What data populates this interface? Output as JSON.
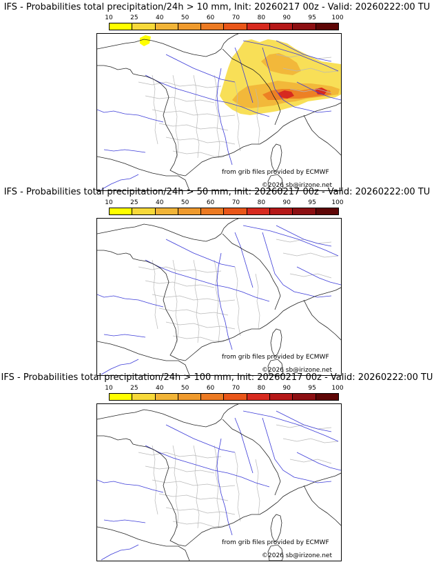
{
  "colorbar": {
    "labels": [
      "10",
      "25",
      "40",
      "50",
      "60",
      "70",
      "80",
      "90",
      "95",
      "100"
    ],
    "colors": [
      "#ffff00",
      "#f7d93a",
      "#f1b437",
      "#ef9a2d",
      "#ec7a22",
      "#e95619",
      "#d72a1f",
      "#b51818",
      "#8c0f12",
      "#5e0606"
    ]
  },
  "panels": [
    {
      "title": "IFS - Probabilities total precipitation/24h > 10 mm, Init: 20260217 00z - Valid: 20260222:00 TU",
      "credit_source": "from grib files provided by ECMWF",
      "credit_copyright": "©2026 sb@irizone.net",
      "has_precip": true
    },
    {
      "title": "IFS - Probabilities total precipitation/24h > 50 mm, Init: 20260217 00z - Valid: 20260222:00 TU",
      "credit_source": "from grib files provided by ECMWF",
      "credit_copyright": "©2026 sb@irizone.net",
      "has_precip": false
    },
    {
      "title": "IFS - Probabilities total precipitation/24h > 100 mm, Init: 20260217 00z - Valid: 20260222:00 TU",
      "credit_source": "from grib files provided by ECMWF",
      "credit_copyright": "©2026 sb@irizone.net",
      "has_precip": false
    }
  ]
}
